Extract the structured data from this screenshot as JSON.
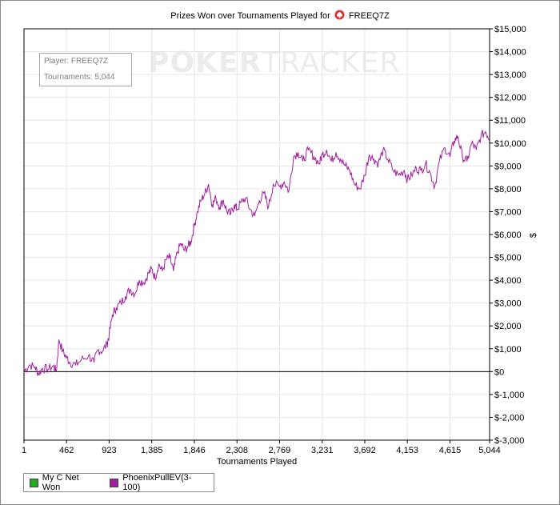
{
  "window": {
    "title_prefix": "Prizes Won over Tournaments Played for",
    "player_name": "FREEQ7Z"
  },
  "watermark": {
    "bold": "POKER",
    "light": "TRACKER"
  },
  "tooltip": {
    "line1": "Player: FREEQ7Z",
    "line2": "Tournaments: 5,044"
  },
  "legend": [
    {
      "label": "My C Net Won",
      "color": "#22aa22"
    },
    {
      "label": "PhoenixPullEV(3-100)",
      "color": "#a020a0"
    }
  ],
  "colors": {
    "series": "#a020a0",
    "grid": "#e6e6e6",
    "zero_line": "#000000",
    "accent": "#e03030"
  },
  "chart_data": {
    "type": "line",
    "title": "Prizes Won over Tournaments Played for FREEQ7Z",
    "xlabel": "Tournaments Played",
    "ylabel": "$",
    "xlim": [
      1,
      5044
    ],
    "ylim": [
      -3000,
      15000
    ],
    "x_ticks": [
      "1",
      "462",
      "923",
      "1,385",
      "1,846",
      "2,308",
      "2,769",
      "3,231",
      "3,692",
      "4,153",
      "4,615",
      "5,044"
    ],
    "x_tick_values": [
      1,
      462,
      923,
      1385,
      1846,
      2308,
      2769,
      3231,
      3692,
      4153,
      4615,
      5044
    ],
    "y_ticks": [
      "$-3,000",
      "$-2,000",
      "$-1,000",
      "$0",
      "$1,000",
      "$2,000",
      "$3,000",
      "$4,000",
      "$5,000",
      "$6,000",
      "$7,000",
      "$8,000",
      "$9,000",
      "$10,000",
      "$11,000",
      "$12,000",
      "$13,000",
      "$14,000",
      "$15,000"
    ],
    "y_tick_values": [
      -3000,
      -2000,
      -1000,
      0,
      1000,
      2000,
      3000,
      4000,
      5000,
      6000,
      7000,
      8000,
      9000,
      10000,
      11000,
      12000,
      13000,
      14000,
      15000
    ],
    "grid": true,
    "legend_position": "bottom-left",
    "series": [
      {
        "name": "PhoenixPullEV(3-100)",
        "x": [
          1,
          60,
          120,
          160,
          200,
          260,
          320,
          350,
          380,
          420,
          462,
          500,
          560,
          620,
          700,
          760,
          800,
          850,
          900,
          923,
          960,
          1000,
          1050,
          1100,
          1150,
          1200,
          1250,
          1300,
          1350,
          1385,
          1420,
          1460,
          1500,
          1540,
          1580,
          1620,
          1660,
          1700,
          1740,
          1780,
          1810,
          1846,
          1880,
          1920,
          1960,
          2000,
          2040,
          2080,
          2120,
          2160,
          2200,
          2240,
          2280,
          2308,
          2350,
          2400,
          2450,
          2500,
          2550,
          2600,
          2650,
          2700,
          2769,
          2820,
          2870,
          2920,
          2970,
          3020,
          3080,
          3140,
          3200,
          3231,
          3280,
          3330,
          3380,
          3430,
          3480,
          3530,
          3580,
          3640,
          3692,
          3740,
          3790,
          3840,
          3890,
          3940,
          4000,
          4060,
          4120,
          4153,
          4200,
          4250,
          4300,
          4350,
          4400,
          4450,
          4500,
          4560,
          4615,
          4660,
          4700,
          4750,
          4800,
          4850,
          4900,
          4950,
          5000,
          5044
        ],
        "values": [
          0,
          300,
          200,
          -100,
          150,
          100,
          250,
          0,
          1400,
          900,
          600,
          400,
          300,
          500,
          700,
          400,
          950,
          900,
          1200,
          1600,
          2500,
          2800,
          3000,
          3300,
          3600,
          3400,
          4000,
          3900,
          4300,
          4500,
          4100,
          4700,
          4400,
          4900,
          5000,
          4400,
          5200,
          5600,
          5300,
          5500,
          5700,
          6400,
          7000,
          7500,
          7800,
          8200,
          7300,
          7600,
          7200,
          7500,
          7000,
          6900,
          7300,
          7100,
          7400,
          7600,
          7100,
          6800,
          7500,
          7800,
          7200,
          8200,
          8100,
          8300,
          7900,
          9400,
          9600,
          9200,
          9700,
          9400,
          9100,
          9500,
          9700,
          9200,
          9600,
          9300,
          9000,
          8800,
          8200,
          8000,
          8600,
          9500,
          9300,
          9100,
          9700,
          9300,
          8800,
          8600,
          8800,
          8400,
          8600,
          8900,
          8800,
          9100,
          8700,
          8100,
          9200,
          9800,
          9400,
          10100,
          10300,
          9400,
          9200,
          10000,
          9700,
          10300,
          10500,
          10200
        ]
      }
    ]
  },
  "axes": {
    "xlabel": "Tournaments Played",
    "ylabel": "$"
  }
}
